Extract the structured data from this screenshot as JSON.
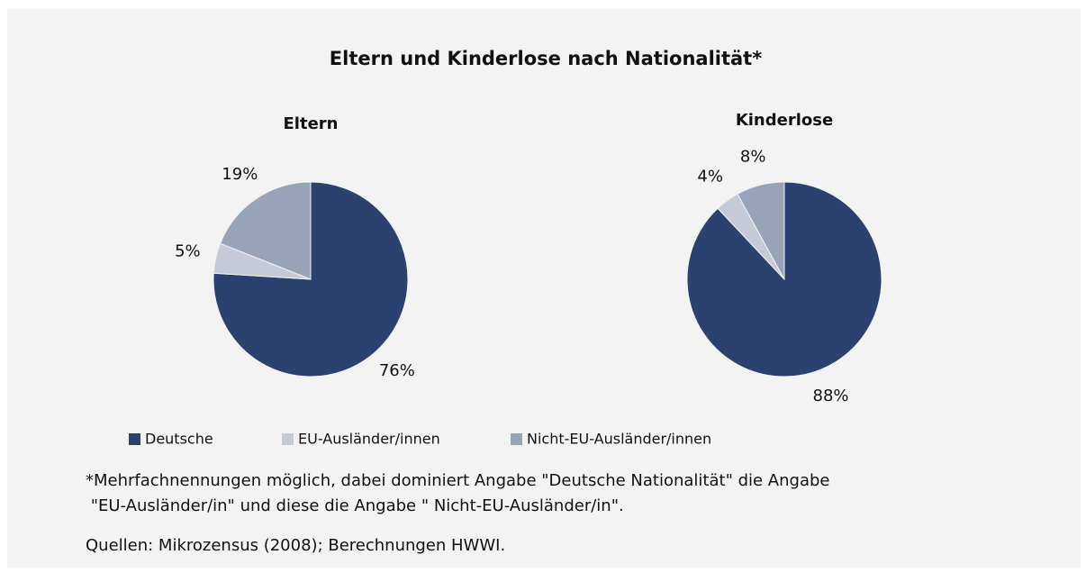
{
  "title": "Eltern und Kinderlose nach Nationalität*",
  "chart_data": [
    {
      "type": "pie",
      "title": "Eltern",
      "categories": [
        "Deutsche",
        "EU-Ausländer/innen",
        "Nicht-EU-Ausländer/innen"
      ],
      "values": [
        76,
        5,
        19
      ],
      "value_labels": [
        "76%",
        "5%",
        "19%"
      ],
      "colors": [
        "#2b4170",
        "#c5cad6",
        "#97a3b8"
      ]
    },
    {
      "type": "pie",
      "title": "Kinderlose",
      "categories": [
        "Deutsche",
        "EU-Ausländer/innen",
        "Nicht-EU-Ausländer/innen"
      ],
      "values": [
        88,
        4,
        8
      ],
      "value_labels": [
        "88%",
        "4%",
        "8%"
      ],
      "colors": [
        "#2b4170",
        "#c5cad6",
        "#97a3b8"
      ]
    }
  ],
  "notes": [
    "*Mehrfachnennungen möglich, dabei dominiert Angabe \"Deutsche Nationalität\" die Angabe",
    " \"EU-Ausländer/in\" und diese die Angabe \" Nicht-EU-Ausländer/in\".",
    "Quellen: Mikrozensus (2008); Berechnungen HWWI."
  ]
}
